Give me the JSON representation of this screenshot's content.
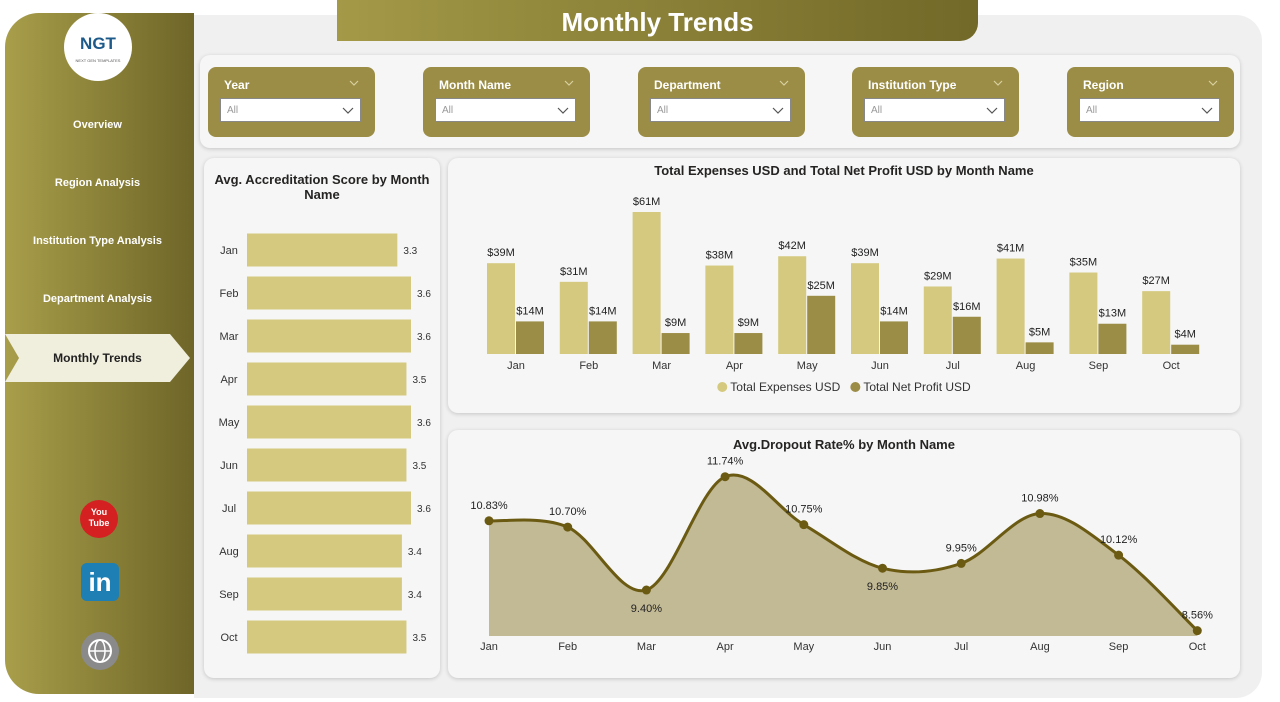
{
  "title": "Monthly Trends",
  "logo": {
    "text": "NGT",
    "subtitle": "NEXT GEN TEMPLATES"
  },
  "nav": [
    "Overview",
    "Region Analysis",
    "Institution Type Analysis",
    "Department Analysis",
    "Monthly Trends"
  ],
  "social": {
    "youtube_top": "You",
    "youtube_bottom": "Tube",
    "linkedin": "in"
  },
  "filters": [
    {
      "label": "Year",
      "value": "All"
    },
    {
      "label": "Month Name",
      "value": "All"
    },
    {
      "label": "Department",
      "value": "All"
    },
    {
      "label": "Institution Type",
      "value": "All"
    },
    {
      "label": "Region",
      "value": "All"
    }
  ],
  "chart_data": [
    {
      "type": "hbar",
      "title": "Avg. Accreditation Score by Month Name",
      "categories": [
        "Jan",
        "Feb",
        "Mar",
        "Apr",
        "May",
        "Jun",
        "Jul",
        "Aug",
        "Sep",
        "Oct"
      ],
      "values": [
        3.3,
        3.6,
        3.6,
        3.5,
        3.6,
        3.5,
        3.6,
        3.4,
        3.4,
        3.5
      ],
      "color": "#d4c97e",
      "xlim": [
        0,
        3.6
      ]
    },
    {
      "type": "grouped_bar",
      "title": "Total Expenses USD and Total Net Profit USD by Month Name",
      "categories": [
        "Jan",
        "Feb",
        "Mar",
        "Apr",
        "May",
        "Jun",
        "Jul",
        "Aug",
        "Sep",
        "Oct"
      ],
      "series": [
        {
          "name": "Total Expenses USD",
          "color": "#d4c97e",
          "values": [
            39000000,
            31000000,
            61000000,
            38000000,
            42000000,
            39000000,
            29000000,
            41000000,
            35000000,
            27000000
          ],
          "value_labels": [
            "$39M",
            "$31M",
            "$61M",
            "$38M",
            "$42M",
            "$39M",
            "$29M",
            "$41M",
            "$35M",
            "$27M"
          ]
        },
        {
          "name": "Total Net Profit USD",
          "color": "#9b8d45",
          "values": [
            14000000,
            14000000,
            9000000,
            9000000,
            25000000,
            14000000,
            16000000,
            5000000,
            13000000,
            4000000
          ],
          "value_labels": [
            "$14M",
            "$14M",
            "$9M",
            "$9M",
            "$25M",
            "$14M",
            "$16M",
            "$5M",
            "$13M",
            "$4M"
          ]
        }
      ],
      "ylim": [
        0,
        61000000
      ],
      "legend": "bottom"
    },
    {
      "type": "area",
      "title": "Avg.Dropout Rate% by Month Name",
      "categories": [
        "Jan",
        "Feb",
        "Mar",
        "Apr",
        "May",
        "Jun",
        "Jul",
        "Aug",
        "Sep",
        "Oct"
      ],
      "values": [
        10.83,
        10.7,
        9.4,
        11.74,
        10.75,
        9.85,
        9.95,
        10.98,
        10.12,
        8.56
      ],
      "value_labels": [
        "10.83%",
        "10.70%",
        "9.40%",
        "11.74%",
        "10.75%",
        "9.85%",
        "9.95%",
        "10.98%",
        "10.12%",
        "8.56%"
      ],
      "color": "#6b5b12",
      "fill": "#c2b995",
      "ylim": [
        8.45,
        12.1
      ]
    }
  ]
}
